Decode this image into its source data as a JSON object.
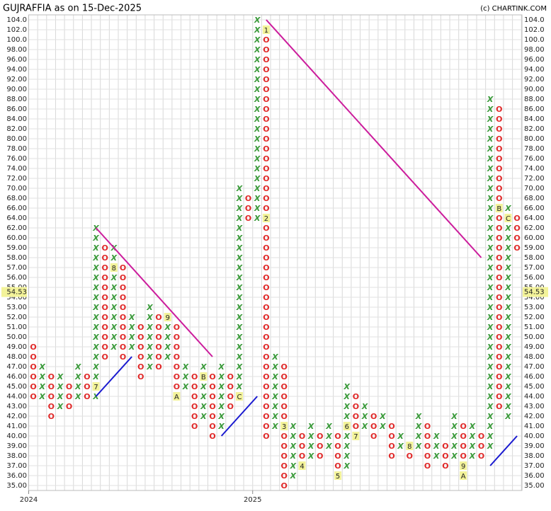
{
  "chart_data": {
    "type": "point_and_figure",
    "title": "GUJRAFFIA as on 15-Dec-2025",
    "source": "(c) CHARTINK.COM",
    "levels": [
      {
        "value": 104,
        "label": "104.0"
      },
      {
        "value": 102,
        "label": "102.0"
      },
      {
        "value": 100,
        "label": "100.0"
      },
      {
        "value": 98,
        "label": "98.00"
      },
      {
        "value": 96,
        "label": "96.00"
      },
      {
        "value": 94,
        "label": "94.00"
      },
      {
        "value": 92,
        "label": "92.00"
      },
      {
        "value": 90,
        "label": "90.00"
      },
      {
        "value": 88,
        "label": "88.00"
      },
      {
        "value": 86,
        "label": "86.00"
      },
      {
        "value": 84,
        "label": "84.00"
      },
      {
        "value": 82,
        "label": "82.00"
      },
      {
        "value": 80,
        "label": "80.00"
      },
      {
        "value": 78,
        "label": "78.00"
      },
      {
        "value": 76,
        "label": "76.00"
      },
      {
        "value": 74,
        "label": "74.00"
      },
      {
        "value": 72,
        "label": "72.00"
      },
      {
        "value": 70,
        "label": "70.00"
      },
      {
        "value": 68,
        "label": "68.00"
      },
      {
        "value": 66,
        "label": "66.00"
      },
      {
        "value": 64,
        "label": "64.00"
      },
      {
        "value": 62,
        "label": "62.00"
      },
      {
        "value": 60,
        "label": "60.00"
      },
      {
        "value": 59,
        "label": "59.00"
      },
      {
        "value": 58,
        "label": "58.00"
      },
      {
        "value": 57,
        "label": "57.00"
      },
      {
        "value": 56,
        "label": "56.00"
      },
      {
        "value": 55,
        "label": "55.00"
      },
      {
        "value": 54,
        "label": "54.00"
      },
      {
        "value": 53,
        "label": "53.00"
      },
      {
        "value": 52,
        "label": "52.00"
      },
      {
        "value": 51,
        "label": "51.00"
      },
      {
        "value": 50,
        "label": "50.00"
      },
      {
        "value": 49,
        "label": "49.00"
      },
      {
        "value": 48,
        "label": "48.00"
      },
      {
        "value": 47,
        "label": "47.00"
      },
      {
        "value": 46,
        "label": "46.00"
      },
      {
        "value": 45,
        "label": "45.00"
      },
      {
        "value": 44,
        "label": "44.00"
      },
      {
        "value": 43,
        "label": "43.00"
      },
      {
        "value": 42,
        "label": "42.00"
      },
      {
        "value": 41,
        "label": "41.00"
      },
      {
        "value": 40,
        "label": "40.00"
      },
      {
        "value": 39,
        "label": "39.00"
      },
      {
        "value": 38,
        "label": "38.00"
      },
      {
        "value": 37,
        "label": "37.00"
      },
      {
        "value": 36,
        "label": "36.00"
      },
      {
        "value": 35,
        "label": "35.00"
      }
    ],
    "last_price": 54.53,
    "colors": {
      "X": "#3a9a3a",
      "O": "#e02828",
      "down_trend": "#cc1c9c",
      "up_trend": "#1a1ad0",
      "marker_bg": "#f3f39a"
    },
    "columns": [
      {
        "kind": "O",
        "high": 49,
        "low": 44
      },
      {
        "kind": "X",
        "high": 47,
        "low": 44
      },
      {
        "kind": "O",
        "high": 46,
        "low": 42
      },
      {
        "kind": "X",
        "high": 46,
        "low": 43
      },
      {
        "kind": "O",
        "high": 45,
        "low": 43
      },
      {
        "kind": "X",
        "high": 47,
        "low": 44
      },
      {
        "kind": "O",
        "high": 46,
        "low": 44
      },
      {
        "kind": "X",
        "high": 63,
        "low": 44,
        "markers": [
          {
            "level": 45,
            "label": "7"
          }
        ]
      },
      {
        "kind": "O",
        "high": 59,
        "low": 48
      },
      {
        "kind": "X",
        "high": 59,
        "low": 49,
        "markers": [
          {
            "level": 57,
            "label": "8"
          }
        ]
      },
      {
        "kind": "O",
        "high": 57,
        "low": 48
      },
      {
        "kind": "X",
        "high": 52,
        "low": 49
      },
      {
        "kind": "O",
        "high": 51,
        "low": 46
      },
      {
        "kind": "X",
        "high": 53,
        "low": 47
      },
      {
        "kind": "O",
        "high": 52,
        "low": 47
      },
      {
        "kind": "X",
        "high": 52,
        "low": 48,
        "markers": [
          {
            "level": 52,
            "label": "9"
          }
        ]
      },
      {
        "kind": "O",
        "high": 51,
        "low": 44,
        "markers": [
          {
            "level": 44,
            "label": "A"
          }
        ]
      },
      {
        "kind": "X",
        "high": 47,
        "low": 45
      },
      {
        "kind": "O",
        "high": 46,
        "low": 41
      },
      {
        "kind": "X",
        "high": 47,
        "low": 42,
        "markers": [
          {
            "level": 46,
            "label": "B"
          }
        ]
      },
      {
        "kind": "O",
        "high": 46,
        "low": 40
      },
      {
        "kind": "X",
        "high": 47,
        "low": 41
      },
      {
        "kind": "O",
        "high": 46,
        "low": 43
      },
      {
        "kind": "X",
        "high": 70,
        "low": 44,
        "markers": [
          {
            "level": 44,
            "label": "C"
          }
        ]
      },
      {
        "kind": "O",
        "high": 68,
        "low": 63
      },
      {
        "kind": "X",
        "high": 104,
        "low": 64
      },
      {
        "kind": "O",
        "high": 102,
        "low": 40,
        "markers": [
          {
            "level": 102,
            "label": "1"
          },
          {
            "level": 64,
            "label": "2"
          }
        ]
      },
      {
        "kind": "X",
        "high": 48,
        "low": 41
      },
      {
        "kind": "O",
        "high": 47,
        "low": 35,
        "markers": [
          {
            "level": 41,
            "label": "3"
          }
        ]
      },
      {
        "kind": "X",
        "high": 41,
        "low": 36
      },
      {
        "kind": "O",
        "high": 40,
        "low": 37,
        "markers": [
          {
            "level": 37,
            "label": "4"
          }
        ]
      },
      {
        "kind": "X",
        "high": 41,
        "low": 38
      },
      {
        "kind": "O",
        "high": 40,
        "low": 38
      },
      {
        "kind": "X",
        "high": 41,
        "low": 39
      },
      {
        "kind": "O",
        "high": 40,
        "low": 36,
        "markers": [
          {
            "level": 36,
            "label": "5"
          }
        ]
      },
      {
        "kind": "X",
        "high": 45,
        "low": 37,
        "markers": [
          {
            "level": 41,
            "label": "6"
          }
        ]
      },
      {
        "kind": "O",
        "high": 44,
        "low": 40,
        "markers": [
          {
            "level": 40,
            "label": "7"
          }
        ]
      },
      {
        "kind": "X",
        "high": 43,
        "low": 41
      },
      {
        "kind": "O",
        "high": 42,
        "low": 40
      },
      {
        "kind": "X",
        "high": 42,
        "low": 41
      },
      {
        "kind": "O",
        "high": 41,
        "low": 38
      },
      {
        "kind": "X",
        "high": 40,
        "low": 39
      },
      {
        "kind": "O",
        "high": 39,
        "low": 38,
        "markers": [
          {
            "level": 39,
            "label": "8"
          }
        ]
      },
      {
        "kind": "X",
        "high": 42,
        "low": 39
      },
      {
        "kind": "O",
        "high": 41,
        "low": 37
      },
      {
        "kind": "X",
        "high": 40,
        "low": 38
      },
      {
        "kind": "O",
        "high": 39,
        "low": 37
      },
      {
        "kind": "X",
        "high": 42,
        "low": 38
      },
      {
        "kind": "O",
        "high": 41,
        "low": 36,
        "markers": [
          {
            "level": 37,
            "label": "9"
          },
          {
            "level": 36,
            "label": "A"
          }
        ]
      },
      {
        "kind": "X",
        "high": 41,
        "low": 38
      },
      {
        "kind": "O",
        "high": 40,
        "low": 38
      },
      {
        "kind": "X",
        "high": 88,
        "low": 39
      },
      {
        "kind": "O",
        "high": 86,
        "low": 43,
        "markers": [
          {
            "level": 66,
            "label": "B"
          }
        ]
      },
      {
        "kind": "X",
        "high": 66,
        "low": 42,
        "markers": [
          {
            "level": 64,
            "label": "C"
          }
        ]
      },
      {
        "kind": "O",
        "high": 65,
        "low": 59
      }
    ],
    "trend_lines": [
      {
        "kind": "down_trend",
        "from": [
          7,
          62
        ],
        "to": [
          20,
          48
        ]
      },
      {
        "kind": "up_trend",
        "from": [
          7,
          44
        ],
        "to": [
          11,
          48
        ]
      },
      {
        "kind": "down_trend",
        "from": [
          26,
          104
        ],
        "to": [
          50,
          58
        ]
      },
      {
        "kind": "up_trend",
        "from": [
          21,
          40
        ],
        "to": [
          25,
          44
        ]
      },
      {
        "kind": "up_trend",
        "from": [
          51,
          37
        ],
        "to": [
          54,
          40
        ]
      }
    ],
    "x_labels": [
      {
        "column": 0,
        "label": "2024"
      },
      {
        "column": 25,
        "label": "2025"
      }
    ]
  }
}
